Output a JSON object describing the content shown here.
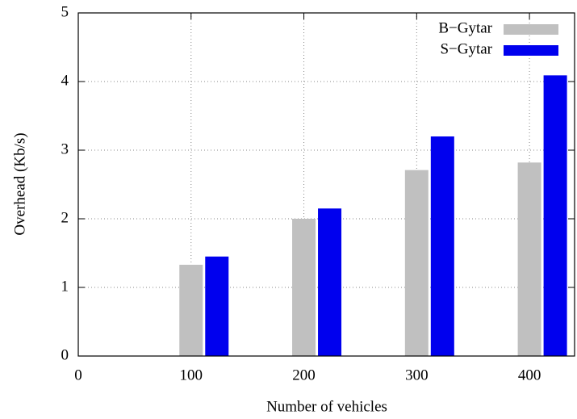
{
  "chart_data": {
    "type": "bar",
    "x": [
      100,
      200,
      300,
      400
    ],
    "series": [
      {
        "name": "B−Gytar",
        "color": "#c0c0c0",
        "values": [
          1.33,
          2.0,
          2.71,
          2.82
        ]
      },
      {
        "name": "S−Gytar",
        "color": "#0000ee",
        "values": [
          1.45,
          2.15,
          3.2,
          4.09
        ]
      }
    ],
    "xlabel": "Number of vehicles",
    "ylabel": "Overhead (Kb/s)",
    "xlim": [
      0,
      440
    ],
    "ylim": [
      0,
      5
    ],
    "xticks": [
      0,
      100,
      200,
      300,
      400
    ],
    "yticks": [
      0,
      1,
      2,
      3,
      4,
      5
    ],
    "grid": true,
    "legend": "upper right"
  }
}
